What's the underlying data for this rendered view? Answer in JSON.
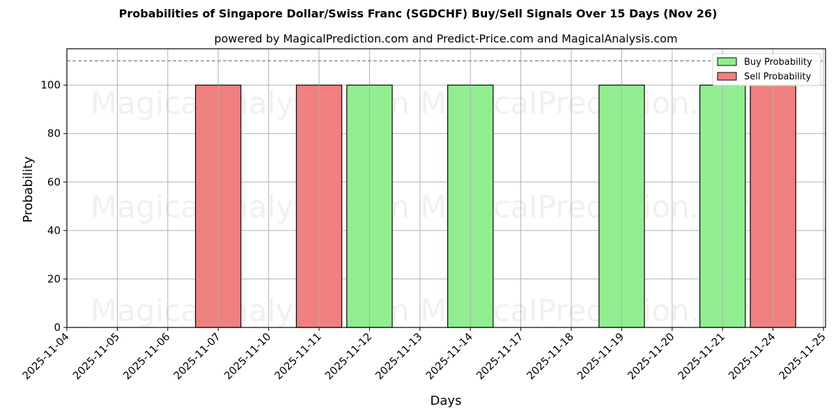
{
  "chart_data": {
    "type": "bar",
    "title": "Probabilities of Singapore Dollar/Swiss Franc (SGDCHF) Buy/Sell Signals Over 15 Days (Nov 26)",
    "subtitle": "powered by MagicalPrediction.com and Predict-Price.com and MagicalAnalysis.com",
    "xlabel": "Days",
    "ylabel": "Probability",
    "ylim": [
      0,
      115
    ],
    "yticks": [
      0,
      20,
      40,
      60,
      80,
      100
    ],
    "reference_line": {
      "y": 110,
      "style": "dashed",
      "color": "#808080"
    },
    "grid": true,
    "legend_position": "upper right",
    "categories": [
      "2025-11-04",
      "2025-11-05",
      "2025-11-06",
      "2025-11-07",
      "2025-11-10",
      "2025-11-11",
      "2025-11-12",
      "2025-11-13",
      "2025-11-14",
      "2025-11-17",
      "2025-11-18",
      "2025-11-19",
      "2025-11-20",
      "2025-11-21",
      "2025-11-24",
      "2025-11-25"
    ],
    "series": [
      {
        "name": "Buy Probability",
        "color": "#90ee90",
        "values": [
          0,
          0,
          0,
          0,
          0,
          0,
          100,
          0,
          100,
          0,
          0,
          100,
          0,
          100,
          0,
          0
        ]
      },
      {
        "name": "Sell Probability",
        "color": "#f08080",
        "values": [
          0,
          0,
          0,
          100,
          0,
          100,
          0,
          0,
          0,
          0,
          0,
          0,
          0,
          0,
          100,
          0
        ]
      }
    ],
    "watermarks": [
      "MagicalAnalysis.com",
      "MagicalPrediction.com"
    ]
  },
  "colors": {
    "buy": "#90ee90",
    "sell": "#f08080",
    "grid": "#b0b0b0",
    "refline": "#808080"
  }
}
